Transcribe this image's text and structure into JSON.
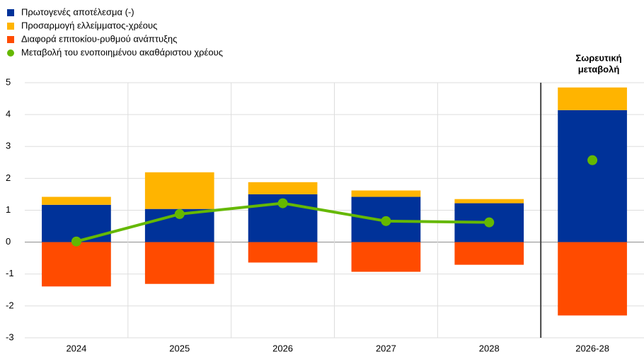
{
  "chart_data": {
    "type": "stacked-bar-line",
    "categories": [
      "2024",
      "2025",
      "2026",
      "2027",
      "2028",
      "2026-28"
    ],
    "annotation": [
      "Σωρευτική",
      "μεταβολή"
    ],
    "series": [
      {
        "name": "Πρωτογενές αποτέλεσμα (-)",
        "kind": "bar",
        "color": "#003299",
        "values": [
          1.17,
          1.04,
          1.5,
          1.42,
          1.22,
          4.14
        ]
      },
      {
        "name": "Προσαρμογή ελλείμματος-χρέους",
        "kind": "bar",
        "color": "#ffb400",
        "values": [
          0.25,
          1.15,
          0.38,
          0.2,
          0.13,
          0.71
        ]
      },
      {
        "name": "Διαφορά επιτοκίου-ρυθμού ανάπτυξης",
        "kind": "bar",
        "color": "#ff4b00",
        "values": [
          -1.39,
          -1.31,
          -0.64,
          -0.93,
          -0.71,
          -2.3
        ]
      },
      {
        "name": "Μεταβολή του ενοποιημένου ακαθάριστου χρέους",
        "kind": "line",
        "color": "#65b800",
        "values": [
          0.02,
          0.88,
          1.22,
          0.66,
          0.62,
          2.57
        ]
      }
    ],
    "ylim": [
      -3,
      5
    ],
    "yticks": [
      -3,
      -2,
      -1,
      0,
      1,
      2,
      3,
      4,
      5
    ],
    "grid": true
  }
}
